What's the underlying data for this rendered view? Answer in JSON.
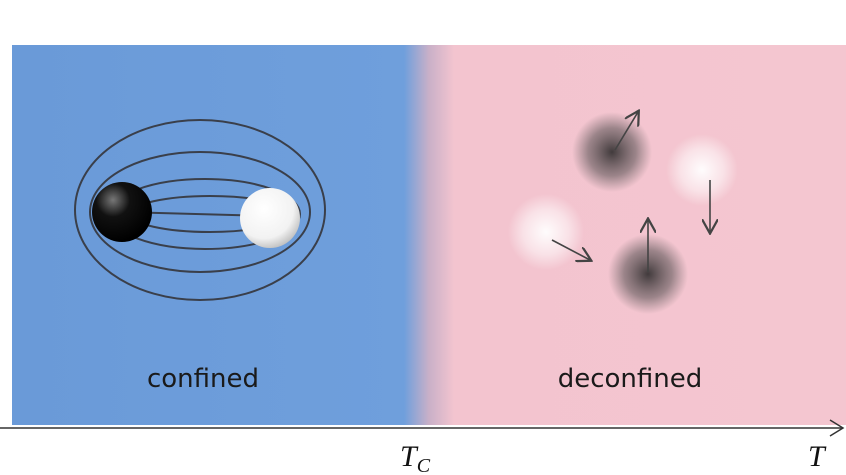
{
  "panels": [
    {
      "label": "confined"
    },
    {
      "label": "deconfined"
    }
  ],
  "axis": {
    "label": "T",
    "critical": {
      "symbol": "T",
      "subscript": "C"
    }
  }
}
